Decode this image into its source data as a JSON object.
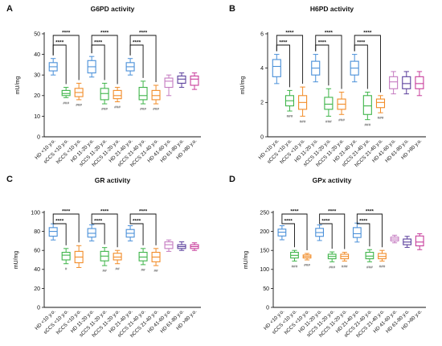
{
  "chart_data": [
    {
      "type": "boxplot",
      "letter": "A",
      "title": "G6PD activity",
      "ylabel": "mU/mg",
      "ylim": [
        0,
        50
      ],
      "yticks": [
        0,
        10,
        20,
        30,
        40,
        50
      ],
      "categories": [
        "HD <10 y.o.",
        "sCCS <10 y.o.",
        "hCCS <10 y.o.",
        "HD 11-20 y.o.",
        "sCCS 11-20 y.o.",
        "hCCS 11-20 y.o.",
        "HD 21-40 y.o.",
        "sCCS 21-40 y.o.",
        "hCCS 21-40 y.o.",
        "HD 41-60 y.o.",
        "HD 61-80 y.o.",
        "HD >80 y.o."
      ],
      "boxes": [
        {
          "min": 30,
          "q1": 32,
          "median": 34,
          "q3": 36,
          "max": 38
        },
        {
          "min": 19,
          "q1": 20,
          "median": 21,
          "q3": 22.5,
          "max": 24
        },
        {
          "min": 18,
          "q1": 19.5,
          "median": 21.5,
          "q3": 23.5,
          "max": 26
        },
        {
          "min": 29,
          "q1": 31,
          "median": 34,
          "q3": 37,
          "max": 39
        },
        {
          "min": 16,
          "q1": 18,
          "median": 21,
          "q3": 23.5,
          "max": 26
        },
        {
          "min": 17,
          "q1": 18.5,
          "median": 20,
          "q3": 22.5,
          "max": 24
        },
        {
          "min": 30,
          "q1": 32,
          "median": 34,
          "q3": 36,
          "max": 38
        },
        {
          "min": 16,
          "q1": 18,
          "median": 20,
          "q3": 24,
          "max": 27
        },
        {
          "min": 16,
          "q1": 18,
          "median": 20,
          "q3": 22.5,
          "max": 25
        },
        {
          "min": 20,
          "q1": 24,
          "median": 27,
          "q3": 28.5,
          "max": 30
        },
        {
          "min": 24,
          "q1": 26,
          "median": 28,
          "q3": 29.5,
          "max": 31
        },
        {
          "min": 23,
          "q1": 25,
          "median": 28,
          "q3": 29.5,
          "max": 31
        }
      ],
      "significance": [
        {
          "from": 0,
          "to": 1,
          "label": "****"
        },
        {
          "from": 0,
          "to": 2,
          "label": "****"
        },
        {
          "from": 3,
          "to": 4,
          "label": "****"
        },
        {
          "from": 3,
          "to": 5,
          "label": "****"
        },
        {
          "from": 6,
          "to": 7,
          "label": "****"
        },
        {
          "from": 6,
          "to": 8,
          "label": "****"
        }
      ],
      "hash_marks": [
        "",
        "###",
        "###",
        "",
        "###",
        "###",
        "",
        "###",
        "###",
        "",
        "",
        ""
      ]
    },
    {
      "type": "boxplot",
      "letter": "B",
      "title": "H6PD activity",
      "ylabel": "mU/mg",
      "ylim": [
        0,
        6
      ],
      "yticks": [
        0,
        2,
        4,
        6
      ],
      "categories": [
        "HD <10 y.o.",
        "sCCS <10 y.o.",
        "hCCS <10 y.o.",
        "HD 11-20 y.o.",
        "sCCS 11-20 y.o.",
        "hCCS 11-20 y.o.",
        "HD 21-40 y.o.",
        "sCCS 21-40 y.o.",
        "hCCS 21-40 y.o.",
        "HD 41-60 y.o.",
        "HD 61-80 y.o.",
        "HD >80 y.o."
      ],
      "boxes": [
        {
          "min": 3.1,
          "q1": 3.5,
          "median": 4.1,
          "q3": 4.5,
          "max": 4.8
        },
        {
          "min": 1.5,
          "q1": 1.8,
          "median": 2.1,
          "q3": 2.4,
          "max": 2.7
        },
        {
          "min": 1.2,
          "q1": 1.6,
          "median": 2.0,
          "q3": 2.4,
          "max": 2.9
        },
        {
          "min": 3.2,
          "q1": 3.6,
          "median": 4.0,
          "q3": 4.4,
          "max": 4.8
        },
        {
          "min": 1.2,
          "q1": 1.6,
          "median": 1.9,
          "q3": 2.3,
          "max": 2.8
        },
        {
          "min": 1.3,
          "q1": 1.6,
          "median": 1.9,
          "q3": 2.2,
          "max": 2.6
        },
        {
          "min": 3.2,
          "q1": 3.6,
          "median": 4.0,
          "q3": 4.4,
          "max": 4.8
        },
        {
          "min": 1.0,
          "q1": 1.3,
          "median": 1.8,
          "q3": 2.4,
          "max": 2.6
        },
        {
          "min": 1.4,
          "q1": 1.7,
          "median": 2.0,
          "q3": 2.2,
          "max": 2.4
        },
        {
          "min": 2.5,
          "q1": 2.8,
          "median": 3.2,
          "q3": 3.5,
          "max": 3.8
        },
        {
          "min": 2.5,
          "q1": 2.8,
          "median": 3.1,
          "q3": 3.5,
          "max": 3.8
        },
        {
          "min": 2.4,
          "q1": 2.8,
          "median": 3.1,
          "q3": 3.5,
          "max": 3.8
        }
      ],
      "significance": [
        {
          "from": 0,
          "to": 1,
          "label": "****"
        },
        {
          "from": 0,
          "to": 2,
          "label": "****"
        },
        {
          "from": 3,
          "to": 4,
          "label": "****"
        },
        {
          "from": 3,
          "to": 5,
          "label": "****"
        },
        {
          "from": 6,
          "to": 7,
          "label": "****"
        },
        {
          "from": 6,
          "to": 8,
          "label": "****"
        }
      ],
      "hash_marks": [
        "",
        "###",
        "###",
        "",
        "###",
        "###",
        "",
        "###",
        "###",
        "",
        "",
        ""
      ]
    },
    {
      "type": "boxplot",
      "letter": "C",
      "title": "GR activity",
      "ylabel": "mU/mg",
      "ylim": [
        0,
        100
      ],
      "yticks": [
        0,
        20,
        40,
        60,
        80,
        100
      ],
      "categories": [
        "HD <10 y.o.",
        "sCCS <10 y.o.",
        "hCCS <10 y.o.",
        "HD 11-20 y.o.",
        "sCCS 11-20 y.o.",
        "hCCS 11-20 y.o.",
        "HD 21-40 y.o.",
        "sCCS 21-40 y.o.",
        "hCCS 21-40 y.o.",
        "HD 41-60 y.o.",
        "HD 61-80 y.o.",
        "HD >80 y.o."
      ],
      "boxes": [
        {
          "min": 71,
          "q1": 75,
          "median": 80,
          "q3": 84,
          "max": 88
        },
        {
          "min": 46,
          "q1": 50,
          "median": 55,
          "q3": 58,
          "max": 62
        },
        {
          "min": 42,
          "q1": 47,
          "median": 53,
          "q3": 59,
          "max": 65
        },
        {
          "min": 70,
          "q1": 74,
          "median": 78,
          "q3": 83,
          "max": 87
        },
        {
          "min": 44,
          "q1": 49,
          "median": 54,
          "q3": 59,
          "max": 63
        },
        {
          "min": 46,
          "q1": 50,
          "median": 53,
          "q3": 57,
          "max": 60
        },
        {
          "min": 70,
          "q1": 74,
          "median": 78,
          "q3": 82,
          "max": 86
        },
        {
          "min": 45,
          "q1": 49,
          "median": 53,
          "q3": 58,
          "max": 62
        },
        {
          "min": 44,
          "q1": 48,
          "median": 53,
          "q3": 58,
          "max": 62
        },
        {
          "min": 59,
          "q1": 62,
          "median": 66,
          "q3": 69,
          "max": 71
        },
        {
          "min": 60,
          "q1": 62,
          "median": 64,
          "q3": 66,
          "max": 69
        },
        {
          "min": 60,
          "q1": 62,
          "median": 64,
          "q3": 66,
          "max": 68
        }
      ],
      "significance": [
        {
          "from": 0,
          "to": 1,
          "label": "****"
        },
        {
          "from": 0,
          "to": 2,
          "label": "****"
        },
        {
          "from": 3,
          "to": 4,
          "label": "****"
        },
        {
          "from": 3,
          "to": 5,
          "label": "****"
        },
        {
          "from": 6,
          "to": 7,
          "label": "****"
        },
        {
          "from": 6,
          "to": 8,
          "label": "****"
        }
      ],
      "hash_marks": [
        "",
        "#",
        "",
        "",
        "##",
        "##",
        "",
        "##",
        "##",
        "",
        "",
        ""
      ]
    },
    {
      "type": "boxplot",
      "letter": "D",
      "title": "GPx activity",
      "ylabel": "mU/mg",
      "ylim": [
        0,
        250
      ],
      "yticks": [
        0,
        50,
        100,
        150,
        200,
        250
      ],
      "categories": [
        "HD <10 y.o.",
        "sCCS <10 y.o.",
        "hCCS <10 y.o.",
        "HD 11-20 y.o.",
        "sCCS 11-20 y.o.",
        "hCCS 11-20 y.o.",
        "HD 21-40 y.o.",
        "sCCS 21-40 y.o.",
        "hCCS 21-40 y.o.",
        "HD 41-60 y.o.",
        "HD 61-80 y.o.",
        "HD >80 y.o."
      ],
      "boxes": [
        {
          "min": 178,
          "q1": 188,
          "median": 198,
          "q3": 206,
          "max": 215
        },
        {
          "min": 122,
          "q1": 130,
          "median": 137,
          "q3": 145,
          "max": 150
        },
        {
          "min": 125,
          "q1": 130,
          "median": 134,
          "q3": 138,
          "max": 142
        },
        {
          "min": 176,
          "q1": 187,
          "median": 197,
          "q3": 208,
          "max": 217
        },
        {
          "min": 120,
          "q1": 128,
          "median": 134,
          "q3": 140,
          "max": 146
        },
        {
          "min": 122,
          "q1": 128,
          "median": 134,
          "q3": 140,
          "max": 145
        },
        {
          "min": 172,
          "q1": 184,
          "median": 194,
          "q3": 210,
          "max": 222
        },
        {
          "min": 120,
          "q1": 128,
          "median": 135,
          "q3": 145,
          "max": 152
        },
        {
          "min": 122,
          "q1": 128,
          "median": 134,
          "q3": 142,
          "max": 150
        },
        {
          "min": 170,
          "q1": 175,
          "median": 180,
          "q3": 185,
          "max": 190
        },
        {
          "min": 158,
          "q1": 165,
          "median": 172,
          "q3": 180,
          "max": 187
        },
        {
          "min": 152,
          "q1": 162,
          "median": 172,
          "q3": 188,
          "max": 194
        }
      ],
      "significance": [
        {
          "from": 0,
          "to": 1,
          "label": "****"
        },
        {
          "from": 0,
          "to": 2,
          "label": "****"
        },
        {
          "from": 3,
          "to": 4,
          "label": "****"
        },
        {
          "from": 3,
          "to": 5,
          "label": "****"
        },
        {
          "from": 6,
          "to": 7,
          "label": "****"
        },
        {
          "from": 6,
          "to": 8,
          "label": "****"
        }
      ],
      "hash_marks": [
        "",
        "###",
        "###",
        "",
        "###",
        "###",
        "",
        "###",
        "###",
        "",
        "",
        ""
      ]
    }
  ],
  "colors": [
    "#4a90d9",
    "#3fb54a",
    "#f28c28",
    "#4a90d9",
    "#3fb54a",
    "#f28c28",
    "#4a90d9",
    "#3fb54a",
    "#f28c28",
    "#c47ac0",
    "#5b3f9c",
    "#c83d9b"
  ]
}
